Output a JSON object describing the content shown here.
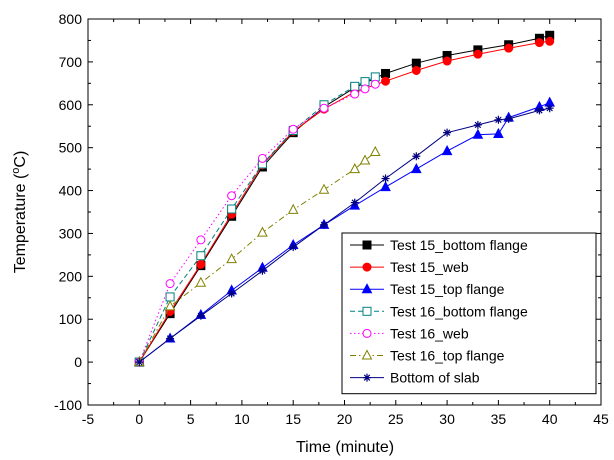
{
  "chart_data": {
    "type": "line",
    "xlabel": "Time (minute)",
    "ylabel": {
      "prefix": "Temperature (",
      "superscript": "o",
      "suffix": "C)"
    },
    "xlim": [
      -5,
      45
    ],
    "ylim": [
      -100,
      800
    ],
    "xticks": [
      -5,
      0,
      5,
      10,
      15,
      20,
      25,
      30,
      35,
      40,
      45
    ],
    "yticks": [
      -100,
      0,
      100,
      200,
      300,
      400,
      500,
      600,
      700,
      800
    ],
    "grid": false,
    "legend_position": "bottom-right",
    "series": [
      {
        "name": "Test 15_bottom flange",
        "color": "#000000",
        "dash": "solid",
        "marker": "square-filled",
        "x": [
          0,
          3,
          6,
          9,
          12,
          15,
          18,
          21,
          24,
          27,
          30,
          33,
          36,
          39,
          40
        ],
        "y": [
          0,
          113,
          225,
          340,
          455,
          535,
          595,
          640,
          673,
          697,
          715,
          728,
          740,
          755,
          762
        ]
      },
      {
        "name": "Test 15_web",
        "color": "#ff0000",
        "dash": "solid",
        "marker": "circle-filled",
        "x": [
          0,
          3,
          6,
          9,
          12,
          15,
          18,
          21,
          24,
          27,
          30,
          33,
          36,
          39,
          40
        ],
        "y": [
          0,
          118,
          228,
          345,
          460,
          538,
          590,
          630,
          655,
          680,
          702,
          718,
          732,
          745,
          748
        ]
      },
      {
        "name": "Test 15_top flange",
        "color": "#0000ff",
        "dash": "solid",
        "marker": "triangle-filled",
        "x": [
          0,
          3,
          6,
          9,
          12,
          15,
          18,
          21,
          24,
          27,
          30,
          33,
          35,
          36,
          39,
          40
        ],
        "y": [
          0,
          55,
          110,
          167,
          220,
          273,
          320,
          365,
          408,
          450,
          492,
          530,
          532,
          570,
          595,
          605
        ]
      },
      {
        "name": "Test 16_bottom flange",
        "color": "#008080",
        "dash": "dash",
        "marker": "square-open",
        "x": [
          0,
          3,
          6,
          9,
          12,
          15,
          18,
          21,
          22,
          23
        ],
        "y": [
          0,
          152,
          248,
          357,
          462,
          540,
          600,
          643,
          654,
          665
        ]
      },
      {
        "name": "Test 16_web",
        "color": "#ff00ff",
        "dash": "dot",
        "marker": "circle-open",
        "x": [
          0,
          3,
          6,
          9,
          12,
          15,
          18,
          21,
          22,
          23
        ],
        "y": [
          0,
          183,
          285,
          388,
          475,
          543,
          592,
          625,
          637,
          648
        ]
      },
      {
        "name": "Test 16_top flange",
        "color": "#808000",
        "dash": "dashdot",
        "marker": "triangle-open",
        "x": [
          0,
          3,
          6,
          9,
          12,
          15,
          18,
          21,
          22,
          23
        ],
        "y": [
          0,
          130,
          185,
          240,
          302,
          355,
          402,
          450,
          470,
          490
        ]
      },
      {
        "name": "Bottom of slab",
        "color": "#000080",
        "dash": "solid",
        "marker": "asterisk",
        "x": [
          0,
          3,
          6,
          9,
          12,
          15,
          18,
          21,
          24,
          27,
          30,
          33,
          35,
          36,
          39,
          40
        ],
        "y": [
          0,
          55,
          108,
          160,
          213,
          268,
          320,
          372,
          428,
          480,
          535,
          553,
          565,
          567,
          587,
          592
        ]
      }
    ]
  }
}
